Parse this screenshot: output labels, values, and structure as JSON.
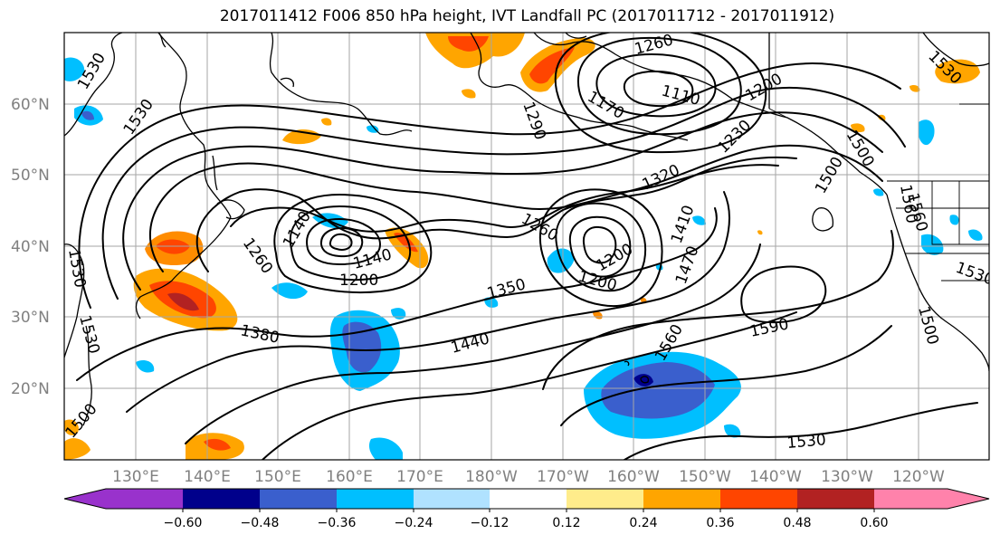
{
  "title": "2017011412 F006 850 hPa height, IVT Landfall PC (2017011712 - 2017011912)",
  "map": {
    "lat_labels": [
      "60°N",
      "50°N",
      "40°N",
      "30°N",
      "20°N"
    ],
    "lon_labels": [
      "130°E",
      "140°E",
      "150°E",
      "160°E",
      "170°E",
      "180°W",
      "170°W",
      "160°W",
      "150°W",
      "140°W",
      "130°W",
      "120°W"
    ],
    "contour_labels": [
      "1530",
      "1530",
      "1530",
      "1530",
      "1500",
      "1500",
      "1500",
      "1530",
      "1260",
      "1260",
      "1290",
      "1320",
      "1350",
      "1380",
      "1440",
      "1470",
      "1410",
      "1560",
      "1590",
      "1530",
      "1140",
      "1110",
      "1170",
      "1200",
      "1230",
      "1200",
      "1140",
      "1200",
      "1260",
      "1200",
      "1530",
      "1560",
      "1500",
      "1560"
    ]
  },
  "colorbar": {
    "ticks": [
      "−0.60",
      "−0.48",
      "−0.36",
      "−0.24",
      "−0.12",
      "0.12",
      "0.24",
      "0.36",
      "0.48",
      "0.60"
    ],
    "colors": [
      "#9932cc",
      "#00008b",
      "#3a5fcd",
      "#00bfff",
      "#b0e2ff",
      "#ffffff",
      "#ffec8b",
      "#ffa500",
      "#ff4500",
      "#b22222",
      "#ff82ab"
    ]
  }
}
